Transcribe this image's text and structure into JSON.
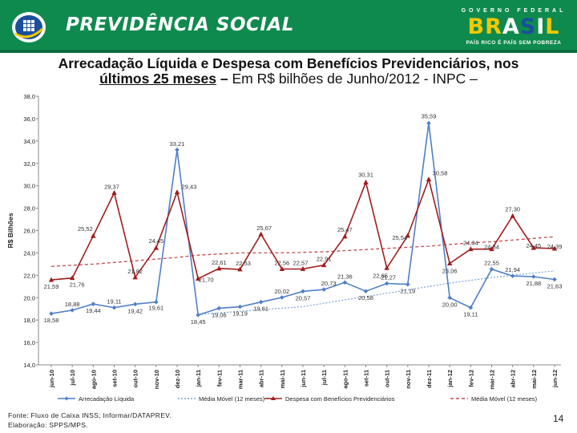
{
  "header": {
    "brand": "PREVIDÊNCIA SOCIAL",
    "gov_top": "GOVERNO FEDERAL",
    "gov_word": [
      "B",
      "R",
      "A",
      "S",
      "I",
      "L"
    ],
    "gov_motto": "PAÍS RICO É PAÍS SEM POBREZA",
    "colors": {
      "green": "#0f8a4e",
      "yellow": "#f5c800",
      "blue": "#1a4f9c"
    }
  },
  "title": {
    "line1": "Arrecadação Líquida e Despesa com Benefícios Previdenciários, nos",
    "line2_bold": "últimos 25 meses",
    "line2_dash": " – ",
    "line2_rest": "Em R$ bilhões de Junho/2012 - INPC –"
  },
  "chart_data": {
    "type": "line",
    "ylabel": "R$ Bilhões",
    "ylim": [
      14,
      38
    ],
    "yticks": [
      "14,0",
      "16,0",
      "18,0",
      "20,0",
      "22,0",
      "24,0",
      "26,0",
      "28,0",
      "30,0",
      "32,0",
      "34,0",
      "36,0",
      "38,0"
    ],
    "categories": [
      "jun-10",
      "jul-10",
      "ago-10",
      "set-10",
      "out-10",
      "nov-10",
      "dez-10",
      "jan-11",
      "fev-11",
      "mar-11",
      "abr-11",
      "mai-11",
      "jun-11",
      "jul-11",
      "ago-11",
      "set-11",
      "out-11",
      "nov-11",
      "dez-11",
      "jan-12",
      "fev-12",
      "mar-12",
      "abr-12",
      "mai-12",
      "jun-12"
    ],
    "series": [
      {
        "name": "Arrecadação Líquida",
        "color": "#4f7fc6",
        "values": [
          18.58,
          18.88,
          19.44,
          19.11,
          19.42,
          19.61,
          33.21,
          18.45,
          19.06,
          19.19,
          19.61,
          20.02,
          20.57,
          20.73,
          21.36,
          20.58,
          21.27,
          21.19,
          35.59,
          20.0,
          19.11,
          22.55,
          21.94,
          21.88,
          21.63
        ],
        "labels": [
          "18,58",
          "18,88",
          "19,44",
          "19,11",
          "19,42",
          "19,61",
          "33,21",
          "18,45",
          "19,06",
          "19,19",
          "19,61",
          "20,02",
          "20,57",
          "20,73",
          "21,36",
          "20,58",
          "21,27",
          "21,19",
          "35,59",
          "20,00",
          "19,11",
          "22,55",
          "21,94",
          "21,88",
          "21,63"
        ]
      },
      {
        "name": "Média Móvel (12 meses)",
        "color": "#7aa3d8",
        "values": [
          null,
          null,
          null,
          null,
          null,
          null,
          null,
          18.5,
          18.64,
          18.78,
          18.92,
          19.06,
          19.2,
          19.5,
          19.8,
          20.1,
          20.4,
          20.7,
          21.0,
          21.3,
          21.55,
          21.8,
          22.0,
          22.2,
          22.4
        ]
      },
      {
        "name": "Despesa com Benefícios Previdenciários",
        "color": "#a01e1e",
        "values": [
          21.59,
          21.76,
          25.52,
          29.37,
          21.82,
          24.45,
          29.43,
          21.7,
          22.61,
          22.53,
          25.67,
          22.56,
          22.57,
          22.91,
          25.47,
          30.31,
          22.65,
          25.54,
          30.58,
          23.06,
          24.34,
          24.34,
          27.3,
          24.45,
          24.39
        ],
        "labels": [
          "21,59",
          "21,76",
          "25,52",
          "29,37",
          "21,82",
          "24,45",
          "29,43",
          "21,70",
          "22,61",
          "22,53",
          "25,67",
          "22,56",
          "22,57",
          "22,91",
          "25,47",
          "30,31",
          "22,65",
          "25,54",
          "30,58",
          "23,06",
          "24,34",
          "24,34",
          "27,30",
          "24,45",
          "24,39"
        ]
      },
      {
        "name": "Média Móvel (12 meses)",
        "color": "#c05050",
        "values": [
          22.8,
          22.9,
          23.0,
          23.15,
          23.3,
          23.45,
          23.6,
          23.8,
          23.9,
          24.0,
          24.0,
          24.0,
          24.05,
          24.1,
          24.2,
          24.3,
          24.4,
          24.5,
          24.6,
          24.75,
          24.9,
          25.0,
          25.15,
          25.3,
          25.45
        ]
      }
    ],
    "legend_position": "bottom",
    "grid": false
  },
  "footer": {
    "source": "Fonte: Fluxo de Caixa INSS; Informar/DATAPREV.",
    "elaboration": "Elaboração: SPPS/MPS.",
    "page": "14"
  }
}
